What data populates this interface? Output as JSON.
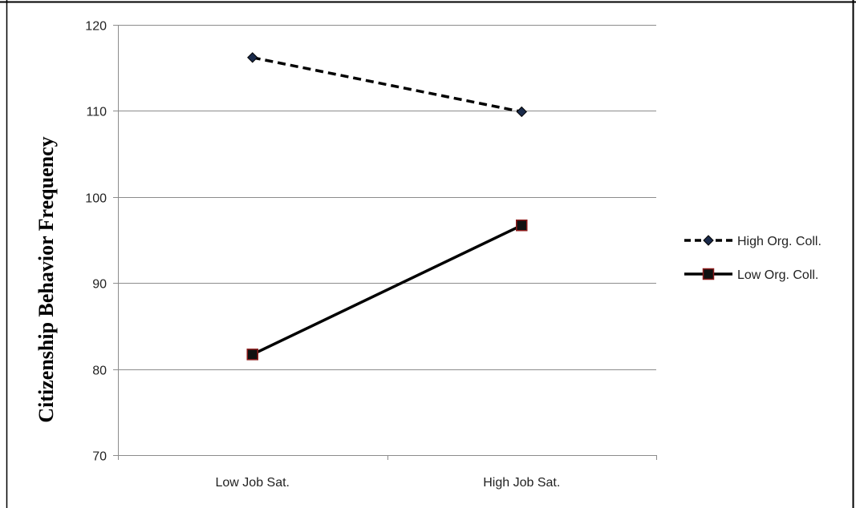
{
  "chart_data": {
    "type": "line",
    "categories": [
      "Low Job Sat.",
      "High Job Sat."
    ],
    "series": [
      {
        "name": "High Org. Coll.",
        "values": [
          116.2,
          109.9
        ],
        "color": "#000000",
        "dash": "dashed",
        "marker": "diamond",
        "marker_fill": "#1a2a4a"
      },
      {
        "name": "Low Org. Coll.",
        "values": [
          81.7,
          96.7
        ],
        "color": "#000000",
        "dash": "solid",
        "marker": "square",
        "marker_fill": "#111111",
        "marker_edge": "#8b1a1a"
      }
    ],
    "ylabel": "Citizenship Behavior Frequency",
    "xlabel": "",
    "ylim": [
      70,
      120
    ],
    "yticks": [
      "70",
      "80",
      "90",
      "100",
      "110",
      "120"
    ],
    "grid": true,
    "grid_color": "#8c8c8c",
    "legend_position": "right"
  }
}
